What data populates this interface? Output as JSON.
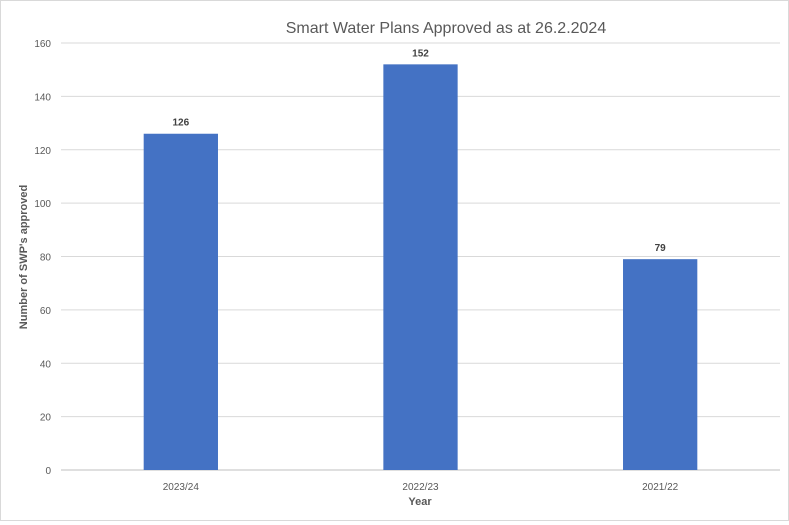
{
  "chart_data": {
    "type": "bar",
    "title": "Smart Water Plans Approved  as at 26.2.2024",
    "xlabel": "Year",
    "ylabel": "Number of SWP's approved",
    "categories": [
      "2023/24",
      "2022/23",
      "2021/22"
    ],
    "values": [
      126,
      152,
      79
    ],
    "ylim": [
      0,
      160
    ],
    "yticks": [
      0,
      20,
      40,
      60,
      80,
      100,
      120,
      140,
      160
    ],
    "grid": true,
    "legend": "none",
    "bar_color": "#4472C4",
    "data_labels": true
  }
}
